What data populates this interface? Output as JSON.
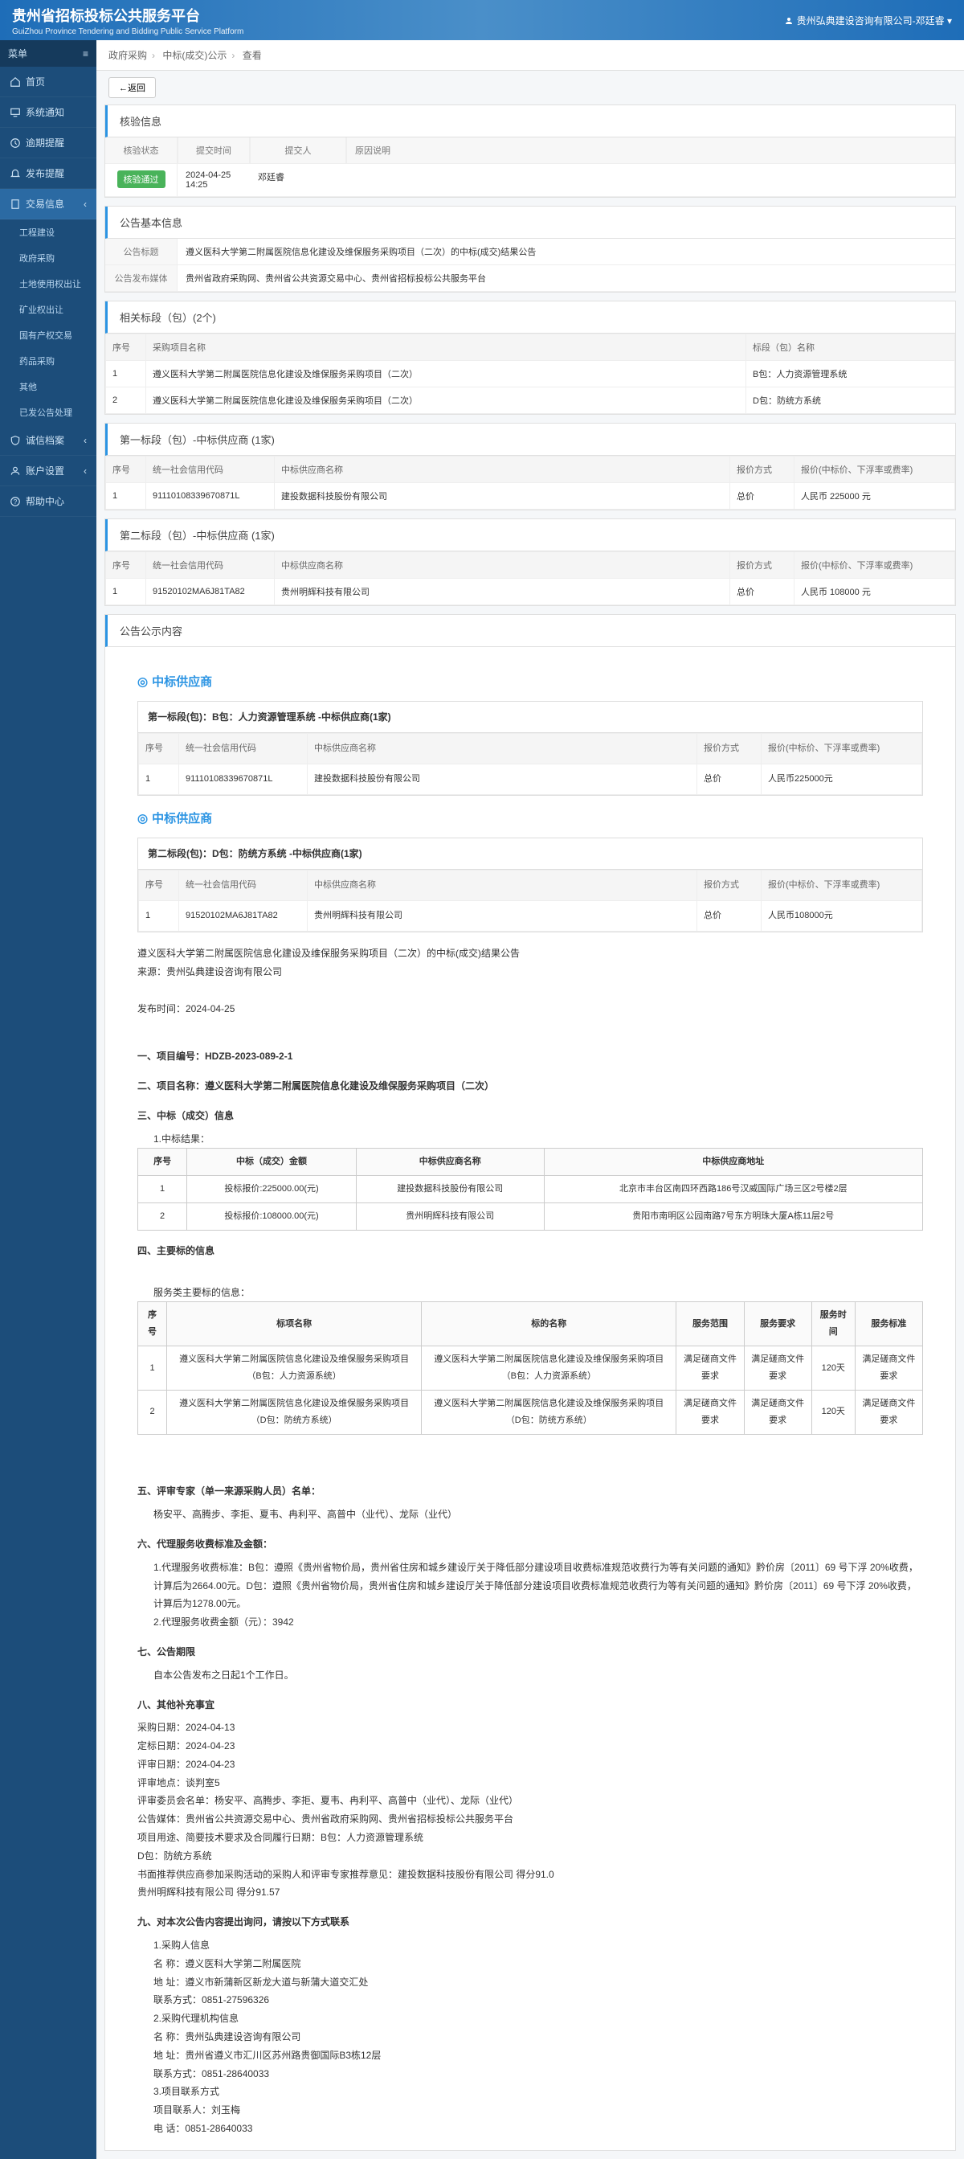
{
  "header": {
    "title": "贵州省招标投标公共服务平台",
    "subtitle": "GuiZhou Province Tendering and Bidding Public Service Platform",
    "user": "贵州弘典建设咨询有限公司-邓廷睿"
  },
  "sidebar": {
    "menu_label": "菜单",
    "items": [
      {
        "label": "首页",
        "icon": "home"
      },
      {
        "label": "系统通知",
        "icon": "monitor"
      },
      {
        "label": "逾期提醒",
        "icon": "clock"
      },
      {
        "label": "发布提醒",
        "icon": "bell"
      },
      {
        "label": "交易信息",
        "icon": "file",
        "active": true,
        "children": [
          {
            "label": "工程建设"
          },
          {
            "label": "政府采购"
          },
          {
            "label": "土地使用权出让"
          },
          {
            "label": "矿业权出让"
          },
          {
            "label": "国有产权交易"
          },
          {
            "label": "药品采购"
          },
          {
            "label": "其他"
          },
          {
            "label": "已发公告处理"
          }
        ]
      },
      {
        "label": "诚信档案",
        "icon": "shield"
      },
      {
        "label": "账户设置",
        "icon": "user"
      },
      {
        "label": "帮助中心",
        "icon": "help"
      }
    ]
  },
  "breadcrumb": {
    "a": "政府采购",
    "b": "中标(成交)公示",
    "c": "查看"
  },
  "back_btn": "←返回",
  "verify": {
    "title": "核验信息",
    "cols": {
      "status": "核验状态",
      "time": "提交时间",
      "person": "提交人",
      "reason": "原因说明"
    },
    "status_badge": "核验通过",
    "time": "2024-04-25 14:25",
    "person": "邓廷睿",
    "reason": ""
  },
  "basic": {
    "title": "公告基本信息",
    "k1": "公告标题",
    "v1": "遵义医科大学第二附属医院信息化建设及维保服务采购项目（二次）的中标(成交)结果公告",
    "k2": "公告发布媒体",
    "v2": "贵州省政府采购网、贵州省公共资源交易中心、贵州省招标投标公共服务平台"
  },
  "related": {
    "title": "相关标段（包）(2个)",
    "h": {
      "no": "序号",
      "name": "采购项目名称",
      "pkg": "标段（包）名称"
    },
    "rows": [
      {
        "no": "1",
        "name": "遵义医科大学第二附属医院信息化建设及维保服务采购项目（二次）",
        "pkg": "B包：人力资源管理系统"
      },
      {
        "no": "2",
        "name": "遵义医科大学第二附属医院信息化建设及维保服务采购项目（二次）",
        "pkg": "D包：防统方系统"
      }
    ]
  },
  "seg1": {
    "title": "第一标段（包）-中标供应商 (1家)",
    "h": {
      "no": "序号",
      "code": "统一社会信用代码",
      "name": "中标供应商名称",
      "method": "报价方式",
      "price": "报价(中标价、下浮率或费率)"
    },
    "rows": [
      {
        "no": "1",
        "code": "91110108339670871L",
        "name": "建投数据科技股份有限公司",
        "method": "总价",
        "price": "人民币 225000 元"
      }
    ]
  },
  "seg2": {
    "title": "第二标段（包）-中标供应商 (1家)",
    "h": {
      "no": "序号",
      "code": "统一社会信用代码",
      "name": "中标供应商名称",
      "method": "报价方式",
      "price": "报价(中标价、下浮率或费率)"
    },
    "rows": [
      {
        "no": "1",
        "code": "91520102MA6J81TA82",
        "name": "贵州明辉科技有限公司",
        "method": "总价",
        "price": "人民币 108000 元"
      }
    ]
  },
  "content": {
    "panel_title": "公告公示内容",
    "winner_label": "中标供应商",
    "box1": {
      "head": "第一标段(包)：B包：人力资源管理系统 -中标供应商(1家)",
      "h": {
        "no": "序号",
        "code": "统一社会信用代码",
        "name": "中标供应商名称",
        "method": "报价方式",
        "price": "报价(中标价、下浮率或费率)"
      },
      "r": {
        "no": "1",
        "code": "91110108339670871L",
        "name": "建投数据科技股份有限公司",
        "method": "总价",
        "price": "人民币225000元"
      }
    },
    "box2": {
      "head": "第二标段(包)：D包：防统方系统 -中标供应商(1家)",
      "h": {
        "no": "序号",
        "code": "统一社会信用代码",
        "name": "中标供应商名称",
        "method": "报价方式",
        "price": "报价(中标价、下浮率或费率)"
      },
      "r": {
        "no": "1",
        "code": "91520102MA6J81TA82",
        "name": "贵州明辉科技有限公司",
        "method": "总价",
        "price": "人民币108000元"
      }
    },
    "proj_title": "遵义医科大学第二附属医院信息化建设及维保服务采购项目（二次）的中标(成交)结果公告",
    "source": "来源：贵州弘典建设咨询有限公司",
    "pub_time": "发布时间：2024-04-25",
    "s1": "一、项目编号：HDZB-2023-089-2-1",
    "s2": "二、项目名称：遵义医科大学第二附属医院信息化建设及维保服务采购项目（二次）",
    "s3": "三、中标（成交）信息",
    "s3note": "1.中标结果：",
    "tbl3": {
      "h": [
        "序号",
        "中标（成交）金额",
        "中标供应商名称",
        "中标供应商地址"
      ],
      "r": [
        [
          "1",
          "投标报价:225000.00(元)",
          "建投数据科技股份有限公司",
          "北京市丰台区南四环西路186号汉威国际广场三区2号楼2层"
        ],
        [
          "2",
          "投标报价:108000.00(元)",
          "贵州明辉科技有限公司",
          "贵阳市南明区公园南路7号东方明珠大厦A栋11层2号"
        ]
      ]
    },
    "s4": "四、主要标的信息",
    "s4note": "服务类主要标的信息：",
    "tbl4": {
      "h": [
        "序号",
        "标项名称",
        "标的名称",
        "服务范围",
        "服务要求",
        "服务时间",
        "服务标准"
      ],
      "r": [
        [
          "1",
          "遵义医科大学第二附属医院信息化建设及维保服务采购项目（B包：人力资源系统）",
          "遵义医科大学第二附属医院信息化建设及维保服务采购项目（B包：人力资源系统）",
          "满足磋商文件要求",
          "满足磋商文件要求",
          "120天",
          "满足磋商文件要求"
        ],
        [
          "2",
          "遵义医科大学第二附属医院信息化建设及维保服务采购项目（D包：防统方系统）",
          "遵义医科大学第二附属医院信息化建设及维保服务采购项目（D包：防统方系统）",
          "满足磋商文件要求",
          "满足磋商文件要求",
          "120天",
          "满足磋商文件要求"
        ]
      ]
    },
    "s5": "五、评审专家（单一来源采购人员）名单：",
    "s5v": "杨安平、高腾步、李拒、夏韦、冉利平、高普中（业代）、龙际（业代）",
    "s6": "六、代理服务收费标准及金额：",
    "s6v1": "1.代理服务收费标准：B包：遵照《贵州省物价局，贵州省住房和城乡建设厅关于降低部分建设项目收费标准规范收费行为等有关问题的通知》黔价房〔2011〕69 号下浮 20%收费，计算后为2664.00元。D包：遵照《贵州省物价局，贵州省住房和城乡建设厅关于降低部分建设项目收费标准规范收费行为等有关问题的通知》黔价房〔2011〕69 号下浮 20%收费，计算后为1278.00元。",
    "s6v2": "2.代理服务收费金额（元）：3942",
    "s7": "七、公告期限",
    "s7v": "自本公告发布之日起1个工作日。",
    "s8": "八、其他补充事宜",
    "s8lines": [
      "采购日期：2024-04-13",
      "定标日期：2024-04-23",
      "评审日期：2024-04-23",
      "评审地点：谈判室5",
      "评审委员会名单：杨安平、高腾步、李拒、夏韦、冉利平、高普中（业代）、龙际（业代）",
      "公告媒体：贵州省公共资源交易中心、贵州省政府采购网、贵州省招标投标公共服务平台",
      "项目用途、简要技术要求及合同履行日期：B包：人力资源管理系统",
      "D包：防统方系统",
      "书面推荐供应商参加采购活动的采购人和评审专家推荐意见：建投数据科技股份有限公司 得分91.0",
      "贵州明辉科技有限公司 得分91.57"
    ],
    "s9": "九、对本次公告内容提出询问，请按以下方式联系",
    "s9lines": [
      "1.采购人信息",
      "名 称：遵义医科大学第二附属医院",
      "地 址：遵义市新蒲新区新龙大道与新蒲大道交汇处",
      "联系方式：0851-27596326",
      "2.采购代理机构信息",
      "名 称：贵州弘典建设咨询有限公司",
      "地 址：贵州省遵义市汇川区苏州路贵御国际B3栋12层",
      "联系方式：0851-28640033",
      "3.项目联系方式",
      "项目联系人：刘玉梅",
      "电 话：0851-28640033"
    ]
  }
}
